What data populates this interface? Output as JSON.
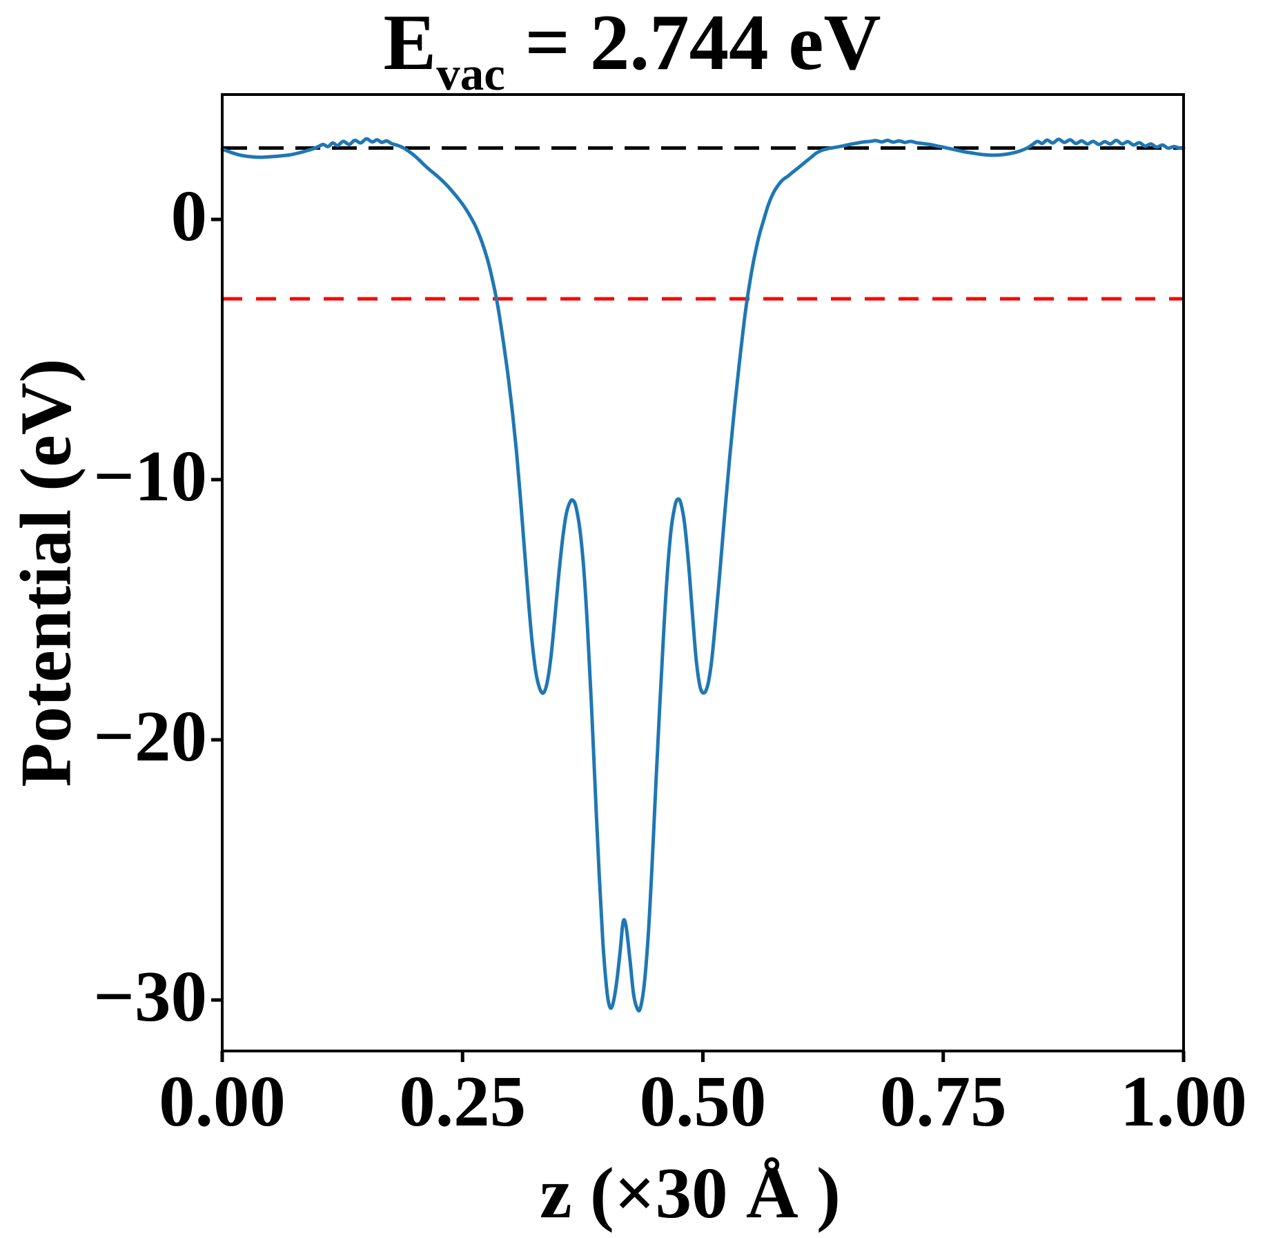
{
  "figure": {
    "title_prefix": "E",
    "title_subscript": "vac",
    "title_suffix": " = 2.744 eV",
    "xlabel": "z (×30 Å )",
    "ylabel": "Potential (eV)"
  },
  "chart_data": {
    "type": "line",
    "title": "E_vac = 2.744 eV",
    "xlabel": "z (×30 Å )",
    "ylabel": "Potential (eV)",
    "xlim": [
      0.0,
      1.0
    ],
    "ylim": [
      -31.96,
      4.8
    ],
    "x_ticks": [
      0.0,
      0.25,
      0.5,
      0.75,
      1.0
    ],
    "x_tick_labels": [
      "0.00",
      "0.25",
      "0.50",
      "0.75",
      "1.00"
    ],
    "y_ticks": [
      0,
      -10,
      -20,
      -30
    ],
    "y_tick_labels": [
      "0",
      "−10",
      "−20",
      "−30"
    ],
    "grid": false,
    "legend": null,
    "axes_color": "#000000",
    "hlines": [
      {
        "name": "vacuum_level",
        "y": 2.744,
        "color": "#000000",
        "style": "dashed",
        "dash": [
          36,
          17
        ],
        "width": 5
      },
      {
        "name": "red_reference_level",
        "y": -3.05,
        "color": "#ff0000",
        "style": "dashed",
        "dash": [
          29,
          20
        ],
        "width": 5
      }
    ],
    "series": [
      {
        "name": "planar_averaged_potential",
        "color": "#1f77b4",
        "style": "solid",
        "width": 5,
        "points": [
          [
            0.0,
            2.7
          ],
          [
            0.006,
            2.62
          ],
          [
            0.012,
            2.54
          ],
          [
            0.02,
            2.46
          ],
          [
            0.03,
            2.41
          ],
          [
            0.04,
            2.39
          ],
          [
            0.05,
            2.41
          ],
          [
            0.06,
            2.44
          ],
          [
            0.07,
            2.48
          ],
          [
            0.08,
            2.56
          ],
          [
            0.088,
            2.64
          ],
          [
            0.095,
            2.72
          ],
          [
            0.1,
            2.8
          ],
          [
            0.105,
            2.88
          ],
          [
            0.11,
            2.8
          ],
          [
            0.115,
            2.94
          ],
          [
            0.12,
            2.84
          ],
          [
            0.126,
            3.0
          ],
          [
            0.132,
            2.88
          ],
          [
            0.138,
            3.04
          ],
          [
            0.144,
            2.94
          ],
          [
            0.15,
            3.1
          ],
          [
            0.156,
            2.98
          ],
          [
            0.161,
            3.06
          ],
          [
            0.166,
            2.96
          ],
          [
            0.171,
            3.02
          ],
          [
            0.176,
            2.92
          ],
          [
            0.182,
            2.85
          ],
          [
            0.188,
            2.76
          ],
          [
            0.194,
            2.62
          ],
          [
            0.2,
            2.45
          ],
          [
            0.205,
            2.28
          ],
          [
            0.21,
            2.1
          ],
          [
            0.216,
            1.9
          ],
          [
            0.222,
            1.72
          ],
          [
            0.228,
            1.52
          ],
          [
            0.234,
            1.3
          ],
          [
            0.24,
            1.05
          ],
          [
            0.246,
            0.78
          ],
          [
            0.252,
            0.48
          ],
          [
            0.258,
            0.12
          ],
          [
            0.264,
            -0.3
          ],
          [
            0.27,
            -0.85
          ],
          [
            0.276,
            -1.55
          ],
          [
            0.281,
            -2.3
          ],
          [
            0.286,
            -3.2
          ],
          [
            0.29,
            -4.1
          ],
          [
            0.294,
            -5.1
          ],
          [
            0.298,
            -6.2
          ],
          [
            0.302,
            -7.45
          ],
          [
            0.306,
            -8.9
          ],
          [
            0.31,
            -10.6
          ],
          [
            0.314,
            -12.5
          ],
          [
            0.318,
            -14.4
          ],
          [
            0.322,
            -16.1
          ],
          [
            0.326,
            -17.35
          ],
          [
            0.33,
            -18.0
          ],
          [
            0.334,
            -18.2
          ],
          [
            0.338,
            -17.8
          ],
          [
            0.342,
            -16.8
          ],
          [
            0.346,
            -15.3
          ],
          [
            0.35,
            -13.7
          ],
          [
            0.354,
            -12.3
          ],
          [
            0.358,
            -11.3
          ],
          [
            0.362,
            -10.85
          ],
          [
            0.365,
            -10.8
          ],
          [
            0.368,
            -11.05
          ],
          [
            0.372,
            -11.9
          ],
          [
            0.376,
            -13.4
          ],
          [
            0.38,
            -15.7
          ],
          [
            0.384,
            -18.6
          ],
          [
            0.388,
            -21.9
          ],
          [
            0.392,
            -25.1
          ],
          [
            0.396,
            -27.8
          ],
          [
            0.4,
            -29.6
          ],
          [
            0.403,
            -30.25
          ],
          [
            0.406,
            -30.2
          ],
          [
            0.41,
            -29.4
          ],
          [
            0.414,
            -28.1
          ],
          [
            0.417,
            -27.0
          ],
          [
            0.42,
            -27.15
          ],
          [
            0.424,
            -28.4
          ],
          [
            0.428,
            -29.8
          ],
          [
            0.432,
            -30.35
          ],
          [
            0.435,
            -30.3
          ],
          [
            0.439,
            -29.4
          ],
          [
            0.443,
            -27.6
          ],
          [
            0.447,
            -24.9
          ],
          [
            0.451,
            -21.8
          ],
          [
            0.455,
            -18.8
          ],
          [
            0.459,
            -16.0
          ],
          [
            0.463,
            -13.6
          ],
          [
            0.467,
            -11.9
          ],
          [
            0.471,
            -11.0
          ],
          [
            0.474,
            -10.75
          ],
          [
            0.477,
            -10.9
          ],
          [
            0.481,
            -11.7
          ],
          [
            0.485,
            -13.2
          ],
          [
            0.489,
            -15.1
          ],
          [
            0.493,
            -16.9
          ],
          [
            0.497,
            -17.95
          ],
          [
            0.501,
            -18.2
          ],
          [
            0.505,
            -17.9
          ],
          [
            0.509,
            -17.0
          ],
          [
            0.513,
            -15.5
          ],
          [
            0.518,
            -13.4
          ],
          [
            0.523,
            -11.2
          ],
          [
            0.528,
            -9.1
          ],
          [
            0.533,
            -7.2
          ],
          [
            0.538,
            -5.5
          ],
          [
            0.543,
            -3.9
          ],
          [
            0.548,
            -2.6
          ],
          [
            0.553,
            -1.55
          ],
          [
            0.558,
            -0.7
          ],
          [
            0.563,
            -0.05
          ],
          [
            0.568,
            0.55
          ],
          [
            0.573,
            1.0
          ],
          [
            0.578,
            1.3
          ],
          [
            0.583,
            1.52
          ],
          [
            0.588,
            1.65
          ],
          [
            0.593,
            1.8
          ],
          [
            0.598,
            1.95
          ],
          [
            0.603,
            2.1
          ],
          [
            0.608,
            2.25
          ],
          [
            0.613,
            2.4
          ],
          [
            0.618,
            2.55
          ],
          [
            0.624,
            2.66
          ],
          [
            0.63,
            2.72
          ],
          [
            0.636,
            2.76
          ],
          [
            0.642,
            2.8
          ],
          [
            0.65,
            2.86
          ],
          [
            0.658,
            2.92
          ],
          [
            0.666,
            2.97
          ],
          [
            0.674,
            3.0
          ],
          [
            0.68,
            3.03
          ],
          [
            0.686,
            2.98
          ],
          [
            0.692,
            3.04
          ],
          [
            0.698,
            2.97
          ],
          [
            0.704,
            3.02
          ],
          [
            0.71,
            2.96
          ],
          [
            0.716,
            3.0
          ],
          [
            0.722,
            2.95
          ],
          [
            0.728,
            2.92
          ],
          [
            0.736,
            2.88
          ],
          [
            0.744,
            2.82
          ],
          [
            0.752,
            2.76
          ],
          [
            0.762,
            2.68
          ],
          [
            0.772,
            2.6
          ],
          [
            0.782,
            2.54
          ],
          [
            0.792,
            2.49
          ],
          [
            0.802,
            2.47
          ],
          [
            0.812,
            2.49
          ],
          [
            0.822,
            2.55
          ],
          [
            0.83,
            2.63
          ],
          [
            0.837,
            2.74
          ],
          [
            0.843,
            2.88
          ],
          [
            0.848,
            3.0
          ],
          [
            0.853,
            2.92
          ],
          [
            0.858,
            3.05
          ],
          [
            0.864,
            2.94
          ],
          [
            0.87,
            3.08
          ],
          [
            0.876,
            2.96
          ],
          [
            0.882,
            3.06
          ],
          [
            0.888,
            2.92
          ],
          [
            0.894,
            3.02
          ],
          [
            0.9,
            2.9
          ],
          [
            0.906,
            3.0
          ],
          [
            0.912,
            2.88
          ],
          [
            0.918,
            2.99
          ],
          [
            0.924,
            2.9
          ],
          [
            0.93,
            3.04
          ],
          [
            0.936,
            2.9
          ],
          [
            0.942,
            2.99
          ],
          [
            0.948,
            2.86
          ],
          [
            0.954,
            2.95
          ],
          [
            0.96,
            2.82
          ],
          [
            0.966,
            2.9
          ],
          [
            0.972,
            2.78
          ],
          [
            0.978,
            2.86
          ],
          [
            0.984,
            2.74
          ],
          [
            0.99,
            2.8
          ],
          [
            0.996,
            2.74
          ],
          [
            1.0,
            2.74
          ]
        ]
      }
    ]
  }
}
